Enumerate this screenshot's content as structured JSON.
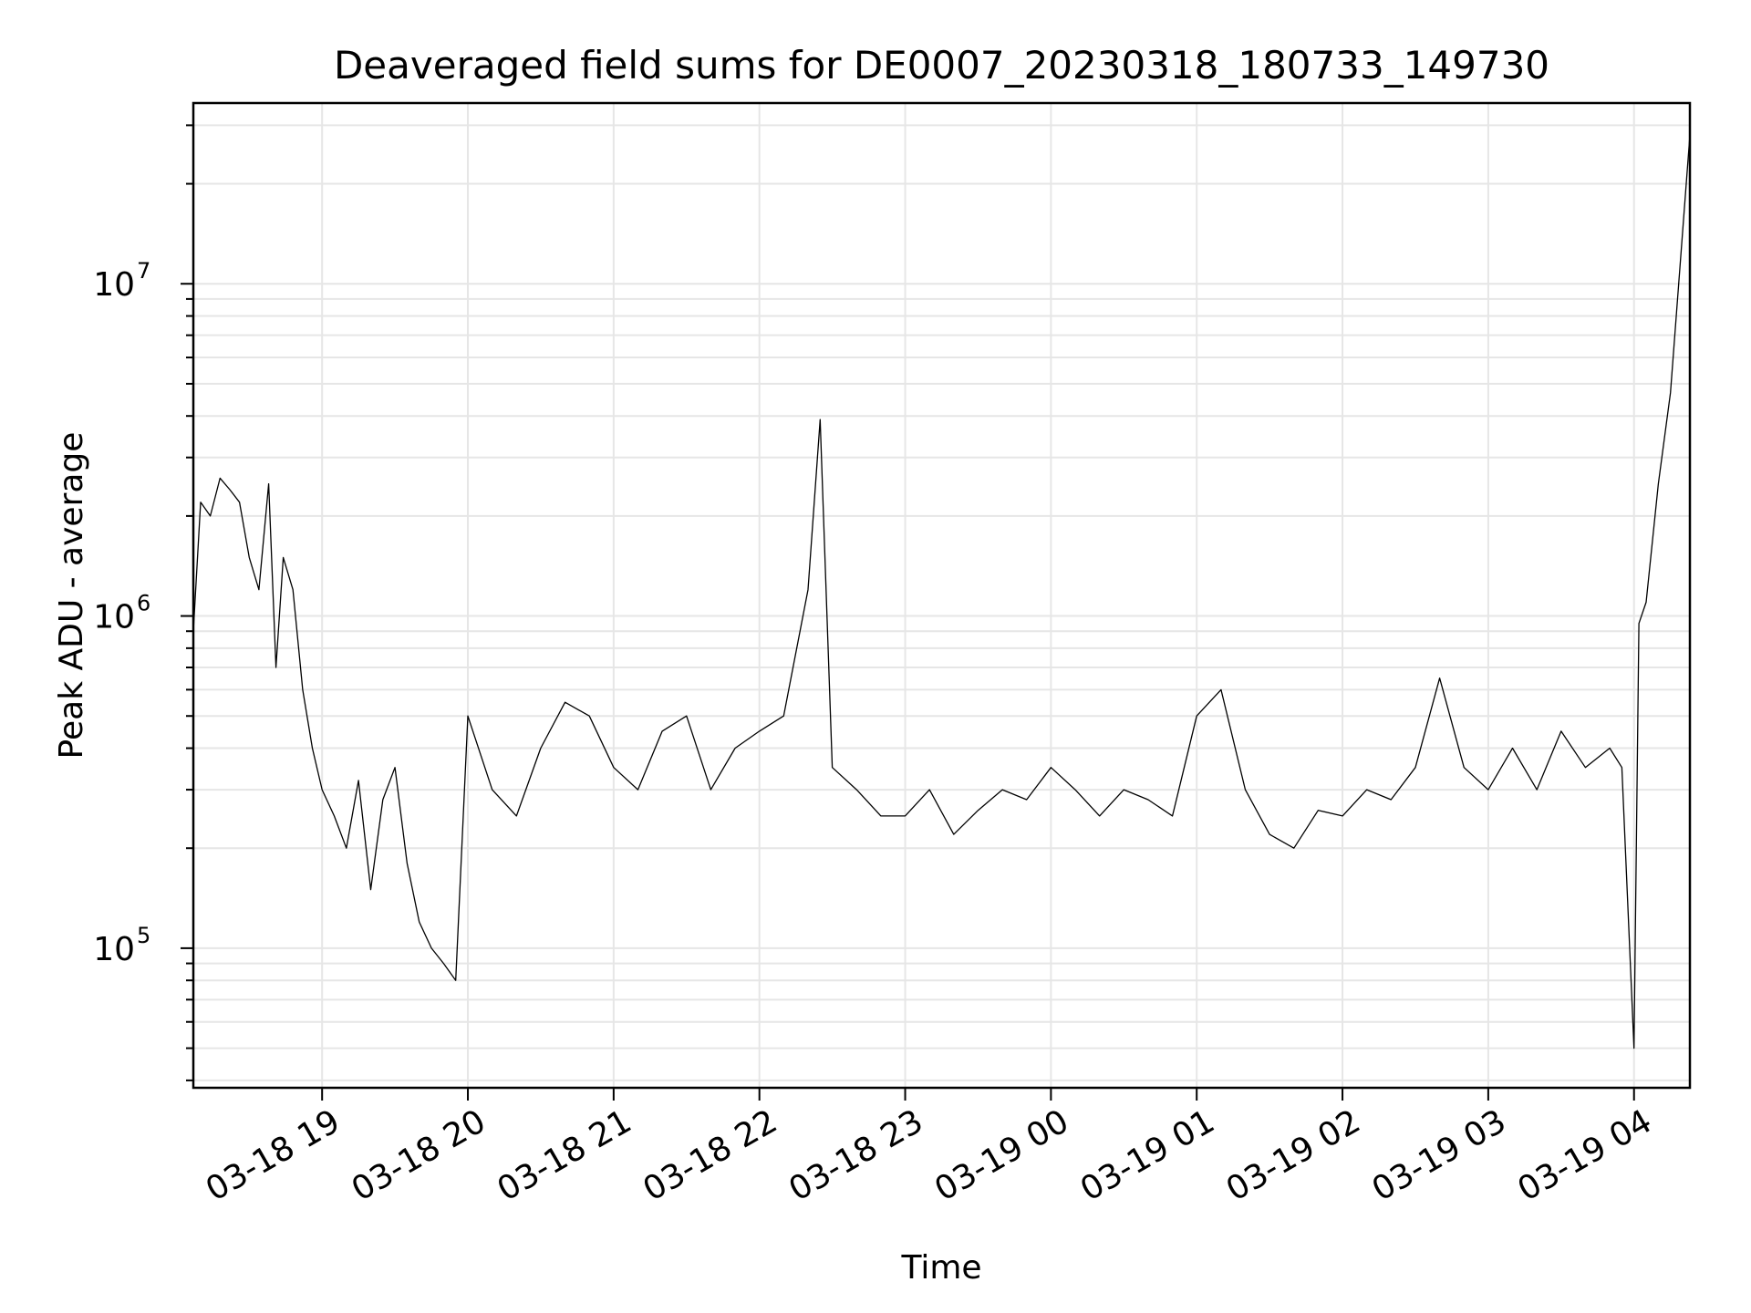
{
  "chart_data": {
    "type": "line",
    "title": "Deaveraged field sums for DE0007_20230318_180733_149730",
    "xlabel": "Time",
    "ylabel": "Peak ADU - average",
    "yscale": "log",
    "ylim": [
      38000,
      35000000
    ],
    "xlim": [
      "2023-03-18 18:07",
      "2023-03-19 04:23"
    ],
    "grid": "on (major and minor)",
    "legend": "none",
    "line_color": "#000000",
    "x_ticks": [
      {
        "value": "2023-03-18 19:00",
        "label": "03-18 19"
      },
      {
        "value": "2023-03-18 20:00",
        "label": "03-18 20"
      },
      {
        "value": "2023-03-18 21:00",
        "label": "03-18 21"
      },
      {
        "value": "2023-03-18 22:00",
        "label": "03-18 22"
      },
      {
        "value": "2023-03-18 23:00",
        "label": "03-18 23"
      },
      {
        "value": "2023-03-19 00:00",
        "label": "03-19 00"
      },
      {
        "value": "2023-03-19 01:00",
        "label": "03-19 01"
      },
      {
        "value": "2023-03-19 02:00",
        "label": "03-19 02"
      },
      {
        "value": "2023-03-19 03:00",
        "label": "03-19 03"
      },
      {
        "value": "2023-03-19 04:00",
        "label": "03-19 04"
      }
    ],
    "y_ticks": [
      {
        "value": 100000,
        "base": "10",
        "exp": "5"
      },
      {
        "value": 1000000,
        "base": "10",
        "exp": "6"
      },
      {
        "value": 10000000,
        "base": "10",
        "exp": "7"
      }
    ],
    "series": [
      {
        "x": [
          "2023-03-18 18:07",
          "2023-03-18 18:10",
          "2023-03-18 18:14",
          "2023-03-18 18:18",
          "2023-03-18 18:22",
          "2023-03-18 18:26",
          "2023-03-18 18:30",
          "2023-03-18 18:34",
          "2023-03-18 18:38",
          "2023-03-18 18:41",
          "2023-03-18 18:44",
          "2023-03-18 18:48",
          "2023-03-18 18:52",
          "2023-03-18 18:56",
          "2023-03-18 19:00",
          "2023-03-18 19:05",
          "2023-03-18 19:10",
          "2023-03-18 19:15",
          "2023-03-18 19:20",
          "2023-03-18 19:25",
          "2023-03-18 19:30",
          "2023-03-18 19:35",
          "2023-03-18 19:40",
          "2023-03-18 19:45",
          "2023-03-18 19:50",
          "2023-03-18 19:55",
          "2023-03-18 20:00",
          "2023-03-18 20:10",
          "2023-03-18 20:20",
          "2023-03-18 20:30",
          "2023-03-18 20:40",
          "2023-03-18 20:50",
          "2023-03-18 21:00",
          "2023-03-18 21:10",
          "2023-03-18 21:20",
          "2023-03-18 21:30",
          "2023-03-18 21:40",
          "2023-03-18 21:50",
          "2023-03-18 22:00",
          "2023-03-18 22:10",
          "2023-03-18 22:20",
          "2023-03-18 22:25",
          "2023-03-18 22:30",
          "2023-03-18 22:40",
          "2023-03-18 22:50",
          "2023-03-18 23:00",
          "2023-03-18 23:10",
          "2023-03-18 23:20",
          "2023-03-18 23:30",
          "2023-03-18 23:40",
          "2023-03-18 23:50",
          "2023-03-19 00:00",
          "2023-03-19 00:10",
          "2023-03-19 00:20",
          "2023-03-19 00:30",
          "2023-03-19 00:40",
          "2023-03-19 00:50",
          "2023-03-19 01:00",
          "2023-03-19 01:10",
          "2023-03-19 01:20",
          "2023-03-19 01:30",
          "2023-03-19 01:40",
          "2023-03-19 01:50",
          "2023-03-19 02:00",
          "2023-03-19 02:10",
          "2023-03-19 02:20",
          "2023-03-19 02:30",
          "2023-03-19 02:40",
          "2023-03-19 02:50",
          "2023-03-19 03:00",
          "2023-03-19 03:10",
          "2023-03-19 03:20",
          "2023-03-19 03:30",
          "2023-03-19 03:40",
          "2023-03-19 03:50",
          "2023-03-19 03:55",
          "2023-03-19 04:00",
          "2023-03-19 04:02",
          "2023-03-19 04:05",
          "2023-03-19 04:10",
          "2023-03-19 04:15",
          "2023-03-19 04:23"
        ],
        "y": [
          900000,
          2200000,
          2000000,
          2600000,
          2400000,
          2200000,
          1500000,
          1200000,
          2500000,
          700000,
          1500000,
          1200000,
          600000,
          400000,
          300000,
          250000,
          200000,
          320000,
          150000,
          280000,
          350000,
          180000,
          120000,
          100000,
          90000,
          80000,
          500000,
          300000,
          250000,
          400000,
          550000,
          500000,
          350000,
          300000,
          450000,
          500000,
          300000,
          400000,
          450000,
          500000,
          1200000,
          3900000,
          350000,
          300000,
          250000,
          250000,
          300000,
          220000,
          260000,
          300000,
          280000,
          350000,
          300000,
          250000,
          300000,
          280000,
          250000,
          500000,
          600000,
          300000,
          220000,
          200000,
          260000,
          250000,
          300000,
          280000,
          350000,
          650000,
          350000,
          300000,
          400000,
          300000,
          450000,
          350000,
          400000,
          350000,
          50000,
          950000,
          1100000,
          2500000,
          4700000,
          28000000
        ]
      }
    ]
  }
}
